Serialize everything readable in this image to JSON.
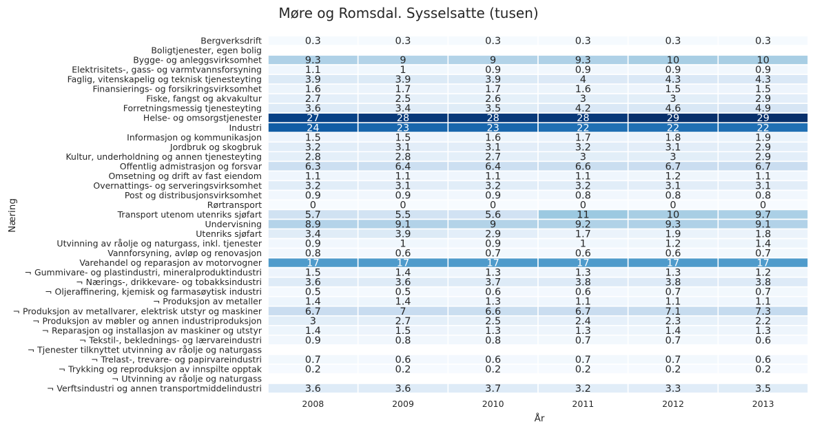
{
  "chart_data": {
    "type": "heatmap",
    "title": "Møre og Romsdal. Sysselsatte (tusen)",
    "xlabel": "År",
    "ylabel": "Næring",
    "colormap": "Blues",
    "value_range": [
      0,
      29
    ],
    "x": [
      "2008",
      "2009",
      "2010",
      "2011",
      "2012",
      "2013"
    ],
    "rows": [
      {
        "label": "Bergverksdrift",
        "values": [
          "0.3",
          "0.3",
          "0.3",
          "0.3",
          "0.3",
          "0.3"
        ]
      },
      {
        "label": "Boligtjenester, egen bolig",
        "values": [
          null,
          null,
          null,
          null,
          null,
          null
        ]
      },
      {
        "label": "Bygge- og anleggsvirksomhet",
        "values": [
          "9.3",
          "9",
          "9",
          "9.3",
          "10",
          "10"
        ]
      },
      {
        "label": "Elektrisitets-, gass- og varmtvannsforsyning",
        "values": [
          "1.1",
          "1",
          "0.9",
          "0.9",
          "0.9",
          "0.9"
        ]
      },
      {
        "label": "Faglig, vitenskapelig og teknisk tjenesteyting",
        "values": [
          "3.9",
          "3.9",
          "3.9",
          "4",
          "4.3",
          "4.3"
        ]
      },
      {
        "label": "Finansierings- og forsikringsvirksomhet",
        "values": [
          "1.6",
          "1.7",
          "1.7",
          "1.6",
          "1.5",
          "1.5"
        ]
      },
      {
        "label": "Fiske, fangst og akvakultur",
        "values": [
          "2.7",
          "2.5",
          "2.6",
          "3",
          "3",
          "2.9"
        ]
      },
      {
        "label": "Forretningsmessig tjenesteyting",
        "values": [
          "3.6",
          "3.4",
          "3.5",
          "4.2",
          "4.6",
          "4.9"
        ]
      },
      {
        "label": "Helse- og omsorgstjenester",
        "values": [
          "27",
          "28",
          "28",
          "28",
          "29",
          "29"
        ]
      },
      {
        "label": "Industri",
        "values": [
          "24",
          "23",
          "23",
          "22",
          "22",
          "22"
        ]
      },
      {
        "label": "Informasjon og kommunikasjon",
        "values": [
          "1.5",
          "1.5",
          "1.6",
          "1.7",
          "1.8",
          "1.9"
        ]
      },
      {
        "label": "Jordbruk og skogbruk",
        "values": [
          "3.2",
          "3.1",
          "3.1",
          "3.2",
          "3.1",
          "2.9"
        ]
      },
      {
        "label": "Kultur, underholdning og annen tjenesteyting",
        "values": [
          "2.8",
          "2.8",
          "2.7",
          "3",
          "3",
          "2.9"
        ]
      },
      {
        "label": "Offentlig admistrasjon og forsvar",
        "values": [
          "6.3",
          "6.4",
          "6.4",
          "6.6",
          "6.7",
          "6.7"
        ]
      },
      {
        "label": "Omsetning og drift av fast eiendom",
        "values": [
          "1.1",
          "1.1",
          "1.1",
          "1.1",
          "1.2",
          "1.1"
        ]
      },
      {
        "label": "Overnattings- og serveringsvirksomhet",
        "values": [
          "3.2",
          "3.1",
          "3.2",
          "3.2",
          "3.1",
          "3.1"
        ]
      },
      {
        "label": "Post og distribusjonsvirksomhet",
        "values": [
          "0.9",
          "0.9",
          "0.9",
          "0.8",
          "0.8",
          "0.8"
        ]
      },
      {
        "label": "Rørtransport",
        "values": [
          "0",
          "0",
          "0",
          "0",
          "0",
          "0"
        ]
      },
      {
        "label": "Transport utenom utenriks sjøfart",
        "values": [
          "5.7",
          "5.5",
          "5.6",
          "11",
          "10",
          "9.7"
        ]
      },
      {
        "label": "Undervisning",
        "values": [
          "8.9",
          "9.1",
          "9",
          "9.2",
          "9.3",
          "9.1"
        ]
      },
      {
        "label": "Utenriks sjøfart",
        "values": [
          "3.4",
          "3.9",
          "2.9",
          "1.7",
          "1.9",
          "1.8"
        ]
      },
      {
        "label": "Utvinning av råolje og naturgass, inkl. tjenester",
        "values": [
          "0.9",
          "1",
          "0.9",
          "1",
          "1.2",
          "1.4"
        ]
      },
      {
        "label": "Vannforsyning, avløp og renovasjon",
        "values": [
          "0.8",
          "0.6",
          "0.7",
          "0.6",
          "0.6",
          "0.7"
        ]
      },
      {
        "label": "Varehandel og reparasjon av motorvogner",
        "values": [
          "17",
          "17",
          "17",
          "17",
          "17",
          "17"
        ]
      },
      {
        "label": "¬ Gummivare- og plastindustri, mineralproduktindustri",
        "values": [
          "1.5",
          "1.4",
          "1.3",
          "1.3",
          "1.3",
          "1.2"
        ]
      },
      {
        "label": "¬ Nærings-, drikkevare- og tobakksindustri",
        "values": [
          "3.6",
          "3.6",
          "3.7",
          "3.8",
          "3.8",
          "3.8"
        ]
      },
      {
        "label": "¬ Oljeraffinering, kjemisk og farmasøytisk industri",
        "values": [
          "0.5",
          "0.5",
          "0.6",
          "0.6",
          "0.7",
          "0.7"
        ]
      },
      {
        "label": "¬ Produksjon av metaller",
        "values": [
          "1.4",
          "1.4",
          "1.3",
          "1.1",
          "1.1",
          "1.1"
        ]
      },
      {
        "label": "¬ Produksjon av metallvarer, elektrisk utstyr og maskiner",
        "values": [
          "6.7",
          "7",
          "6.6",
          "6.7",
          "7.1",
          "7.3"
        ]
      },
      {
        "label": "¬ Produksjon av møbler og annen industriproduksjon",
        "values": [
          "3",
          "2.7",
          "2.5",
          "2.4",
          "2.3",
          "2.2"
        ]
      },
      {
        "label": "¬ Reparasjon og installasjon av maskiner og utstyr",
        "values": [
          "1.4",
          "1.5",
          "1.3",
          "1.3",
          "1.4",
          "1.3"
        ]
      },
      {
        "label": "¬ Tekstil-, beklednings- og lærvareindustri",
        "values": [
          "0.9",
          "0.8",
          "0.8",
          "0.7",
          "0.7",
          "0.6"
        ]
      },
      {
        "label": "¬ Tjenester tilknyttet utvinning av råolje og naturgass",
        "values": [
          null,
          null,
          null,
          null,
          null,
          null
        ]
      },
      {
        "label": "¬ Trelast-, trevare- og papirvareindustri",
        "values": [
          "0.7",
          "0.6",
          "0.6",
          "0.7",
          "0.7",
          "0.6"
        ]
      },
      {
        "label": "¬ Trykking og reproduksjon av innspilte opptak",
        "values": [
          "0.2",
          "0.2",
          "0.2",
          "0.2",
          "0.2",
          "0.2"
        ]
      },
      {
        "label": "¬ Utvinning av råolje og naturgass",
        "values": [
          null,
          null,
          null,
          null,
          null,
          null
        ]
      },
      {
        "label": "¬ Verftsindustri og annen transportmiddelindustri",
        "values": [
          "3.6",
          "3.6",
          "3.7",
          "3.2",
          "3.3",
          "3.5"
        ]
      }
    ]
  }
}
